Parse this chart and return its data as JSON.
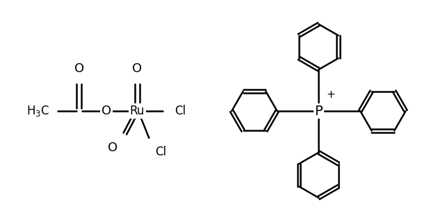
{
  "bg_color": "#ffffff",
  "line_color": "#000000",
  "line_width": 1.8,
  "figure_width": 6.4,
  "figure_height": 3.2,
  "dpi": 100,
  "xlim": [
    0,
    10
  ],
  "ylim": [
    0,
    5
  ],
  "font_size": 12
}
